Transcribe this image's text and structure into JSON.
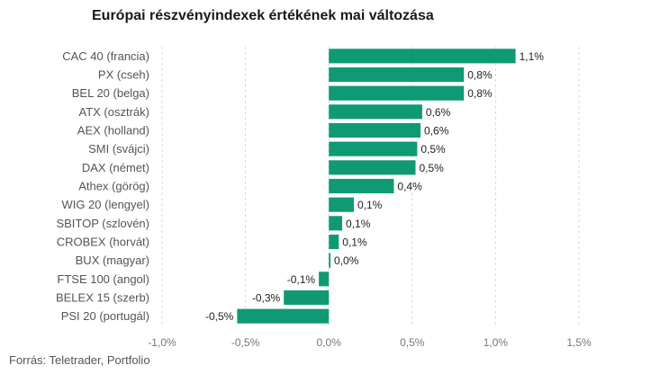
{
  "title": "Európai részvényindexek értékének mai változása",
  "source": "Forrás: Teletrader, Portfolio",
  "colors": {
    "bar": "#109a74",
    "grid": "#d9d9d9"
  },
  "chart_data": {
    "type": "bar",
    "orientation": "horizontal",
    "title": "Európai részvényindexek értékének mai változása",
    "xlim": [
      -1.0,
      1.5
    ],
    "xticks": [
      -1.0,
      -0.5,
      0.0,
      0.5,
      1.0,
      1.5
    ],
    "xtick_labels": [
      "-1,0%",
      "-0,5%",
      "0,0%",
      "0,5%",
      "1,0%",
      "1,5%"
    ],
    "grid": "vertical dashed",
    "categories": [
      "CAC 40 (francia)",
      "PX (cseh)",
      "BEL 20 (belga)",
      "ATX (osztrák)",
      "AEX (holland)",
      "SMI (svájci)",
      "DAX (német)",
      "Athex (görög)",
      "WIG 20 (lengyel)",
      "SBITOP (szlovén)",
      "CROBEX (horvát)",
      "BUX (magyar)",
      "FTSE 100 (angol)",
      "BELEX 15 (szerb)",
      "PSI 20 (portugál)"
    ],
    "values": [
      1.12,
      0.81,
      0.81,
      0.56,
      0.55,
      0.53,
      0.52,
      0.39,
      0.15,
      0.08,
      0.06,
      0.01,
      -0.06,
      -0.27,
      -0.55
    ],
    "value_labels": [
      "1,1%",
      "0,8%",
      "0,8%",
      "0,6%",
      "0,6%",
      "0,5%",
      "0,5%",
      "0,4%",
      "0,1%",
      "0,1%",
      "0,1%",
      "0,0%",
      "-0,1%",
      "-0,3%",
      "-0,5%"
    ]
  }
}
